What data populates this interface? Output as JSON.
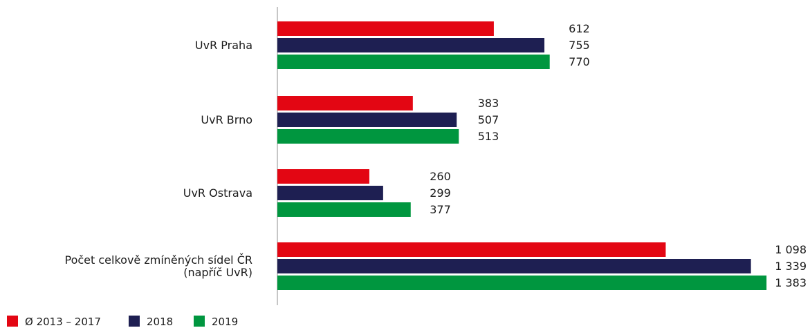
{
  "chart_data": {
    "type": "bar",
    "orientation": "horizontal",
    "categories": [
      [
        "UvR Praha"
      ],
      [
        "UvR Brno"
      ],
      [
        "UvR Ostrava"
      ],
      [
        "Počet celkově zmíněných sídel ČR",
        "(napříč UvR)"
      ]
    ],
    "series": [
      {
        "name": "Ø 2013 – 2017",
        "color": "#e30613",
        "values": [
          612,
          383,
          260,
          1098
        ],
        "labels": [
          "612",
          "383",
          "260",
          "1 098"
        ]
      },
      {
        "name": "2018",
        "color": "#1e1f52",
        "values": [
          755,
          507,
          299,
          1339
        ],
        "labels": [
          "755",
          "507",
          "299",
          "1 339"
        ]
      },
      {
        "name": "2019",
        "color": "#00963f",
        "values": [
          770,
          513,
          377,
          1383
        ],
        "labels": [
          "770",
          "513",
          "377",
          "1 383"
        ]
      }
    ],
    "xlim": [
      0,
      1500
    ],
    "grid": false,
    "legend_position": "bottom-left"
  }
}
